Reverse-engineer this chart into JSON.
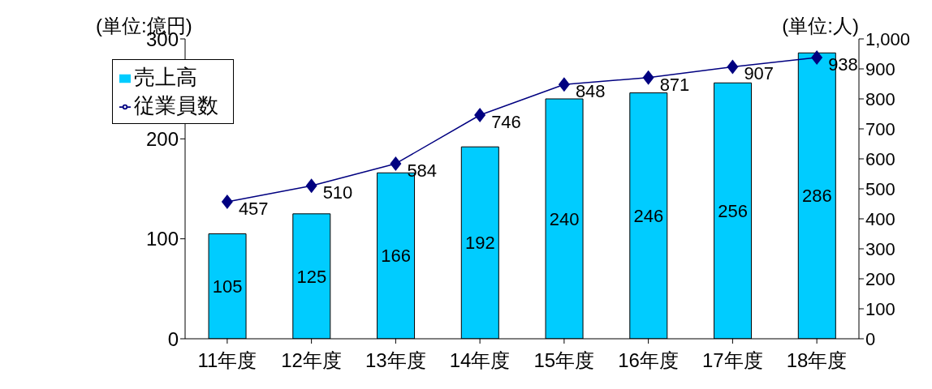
{
  "chart_data": {
    "type": "bar",
    "ylabel": "(単位:億円)",
    "y2label": "(単位:人)",
    "categories": [
      "11年度",
      "12年度",
      "13年度",
      "14年度",
      "15年度",
      "16年度",
      "17年度",
      "18年度"
    ],
    "series": [
      {
        "name": "売上高",
        "color": "#00ccff",
        "values": [
          105,
          125,
          166,
          192,
          240,
          246,
          256,
          286
        ]
      },
      {
        "name": "従業員数",
        "type": "line",
        "axis": "y2",
        "color": "#000080",
        "values": [
          457,
          510,
          584,
          746,
          848,
          871,
          907,
          938
        ]
      }
    ],
    "ylim": [
      0,
      300
    ],
    "yticks": [
      0,
      100,
      200,
      300
    ],
    "y2lim": [
      0,
      1000
    ],
    "y2ticks": [
      0,
      100,
      200,
      300,
      400,
      500,
      600,
      700,
      800,
      900,
      {
        "value": 1000,
        "label": "1,000"
      }
    ],
    "data_labels": true,
    "legend": "top left",
    "grid": false,
    "marker": "diamond",
    "line_style": "solid"
  }
}
